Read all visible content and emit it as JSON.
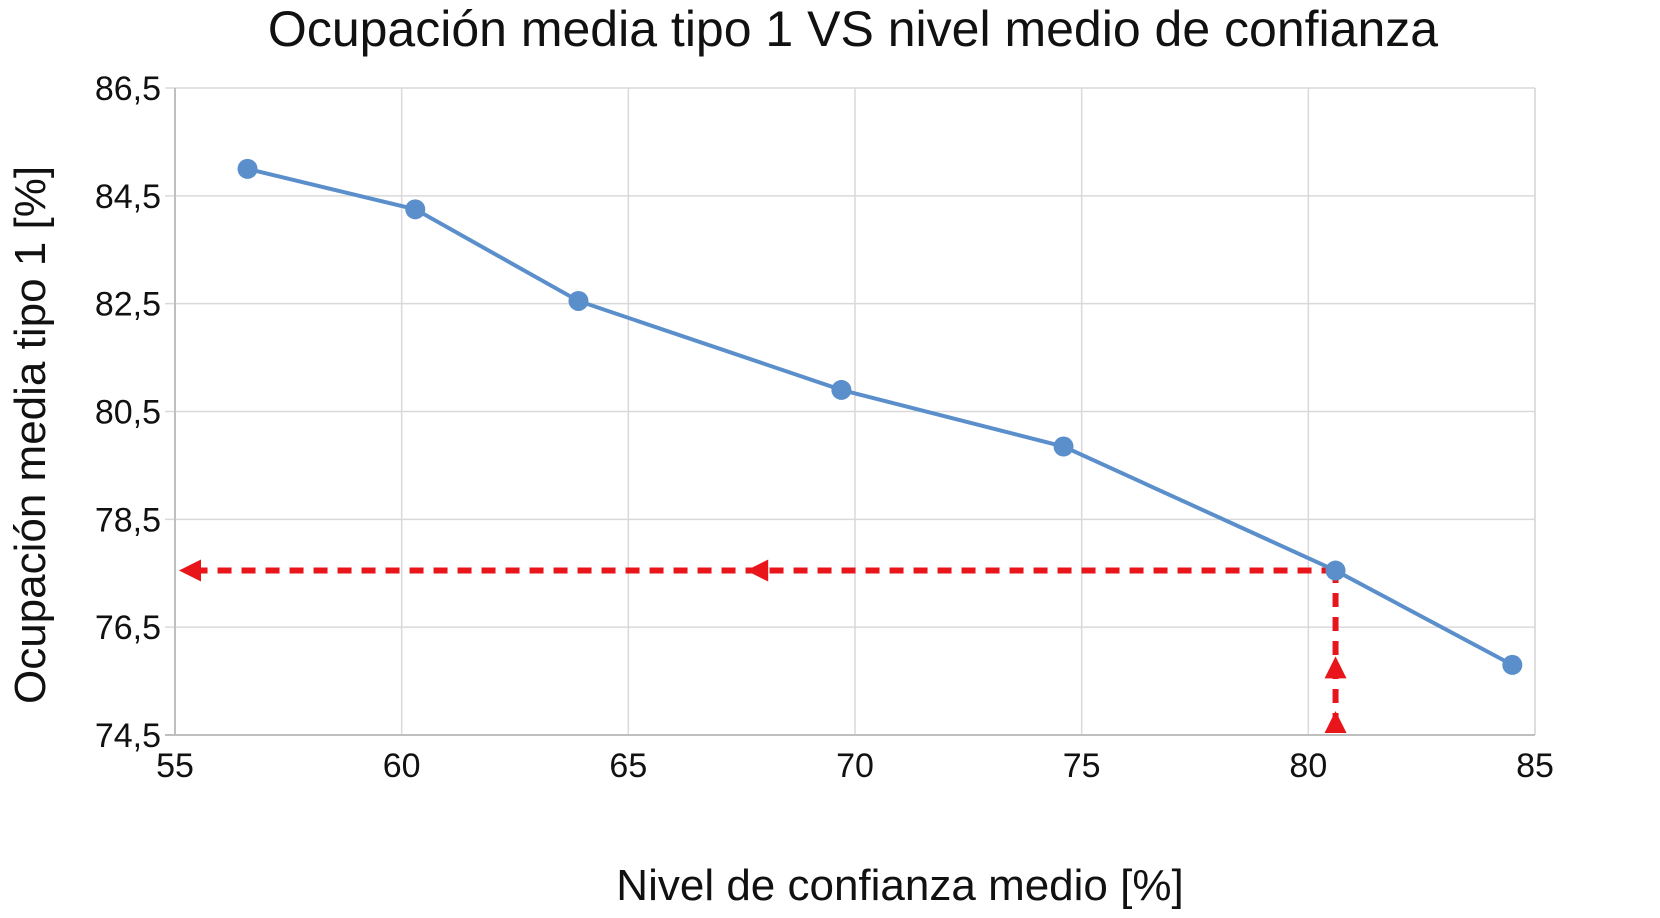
{
  "chart_data": {
    "type": "line",
    "title": "Ocupación media tipo 1 VS nivel medio de confianza",
    "xlabel": "Nivel de confianza medio [%]",
    "ylabel": "Ocupación media tipo 1 [%]",
    "xlim": [
      55,
      85
    ],
    "ylim": [
      74.5,
      86.5
    ],
    "xticks": [
      "55",
      "60",
      "65",
      "70",
      "75",
      "80",
      "85"
    ],
    "yticks": [
      "74,5",
      "76,5",
      "78,5",
      "80,5",
      "82,5",
      "84,5",
      "86,5"
    ],
    "xtick_values": [
      55,
      60,
      65,
      70,
      75,
      80,
      85
    ],
    "ytick_values": [
      74.5,
      76.5,
      78.5,
      80.5,
      82.5,
      84.5,
      86.5
    ],
    "grid": true,
    "series": [
      {
        "x": [
          56.6,
          60.3,
          63.9,
          69.7,
          74.6,
          80.6,
          84.5
        ],
        "y": [
          85.0,
          84.25,
          82.55,
          80.9,
          79.85,
          77.55,
          75.8
        ],
        "color": "#5b8fcb"
      }
    ],
    "guides": {
      "x": 80.6,
      "y": 77.55,
      "color": "#e8151b"
    }
  }
}
